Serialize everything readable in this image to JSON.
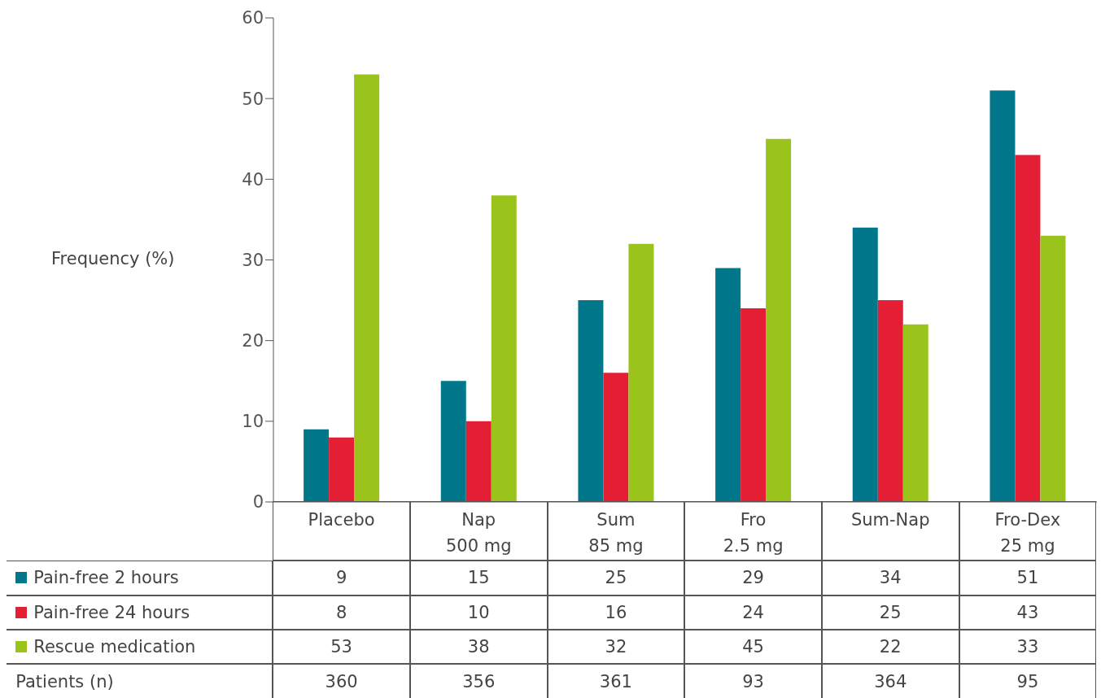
{
  "chart_data": {
    "type": "bar",
    "ylabel": "Frequency (%)",
    "categories": [
      "Placebo",
      "Nap\n500 mg",
      "Sum\n85 mg",
      "Fro\n2.5 mg",
      "Sum-Nap",
      "Fro-Dex\n25 mg"
    ],
    "series": [
      {
        "name": "Pain-free 2 hours",
        "color": "#00778a",
        "values": [
          9,
          15,
          25,
          29,
          34,
          51
        ]
      },
      {
        "name": "Pain-free 24 hours",
        "color": "#e31e35",
        "values": [
          8,
          10,
          16,
          24,
          25,
          43
        ]
      },
      {
        "name": "Rescue medication",
        "color": "#9ac31c",
        "values": [
          53,
          38,
          32,
          45,
          22,
          33
        ]
      }
    ],
    "ylim": [
      0,
      60
    ],
    "yticks": [
      0,
      10,
      20,
      30,
      40,
      50,
      60
    ],
    "grid": false,
    "legend": "bottom left",
    "data_labels": true,
    "annotations": [
      "Patients (n)",
      "360",
      "356",
      "361",
      "93",
      "364",
      "95"
    ]
  }
}
